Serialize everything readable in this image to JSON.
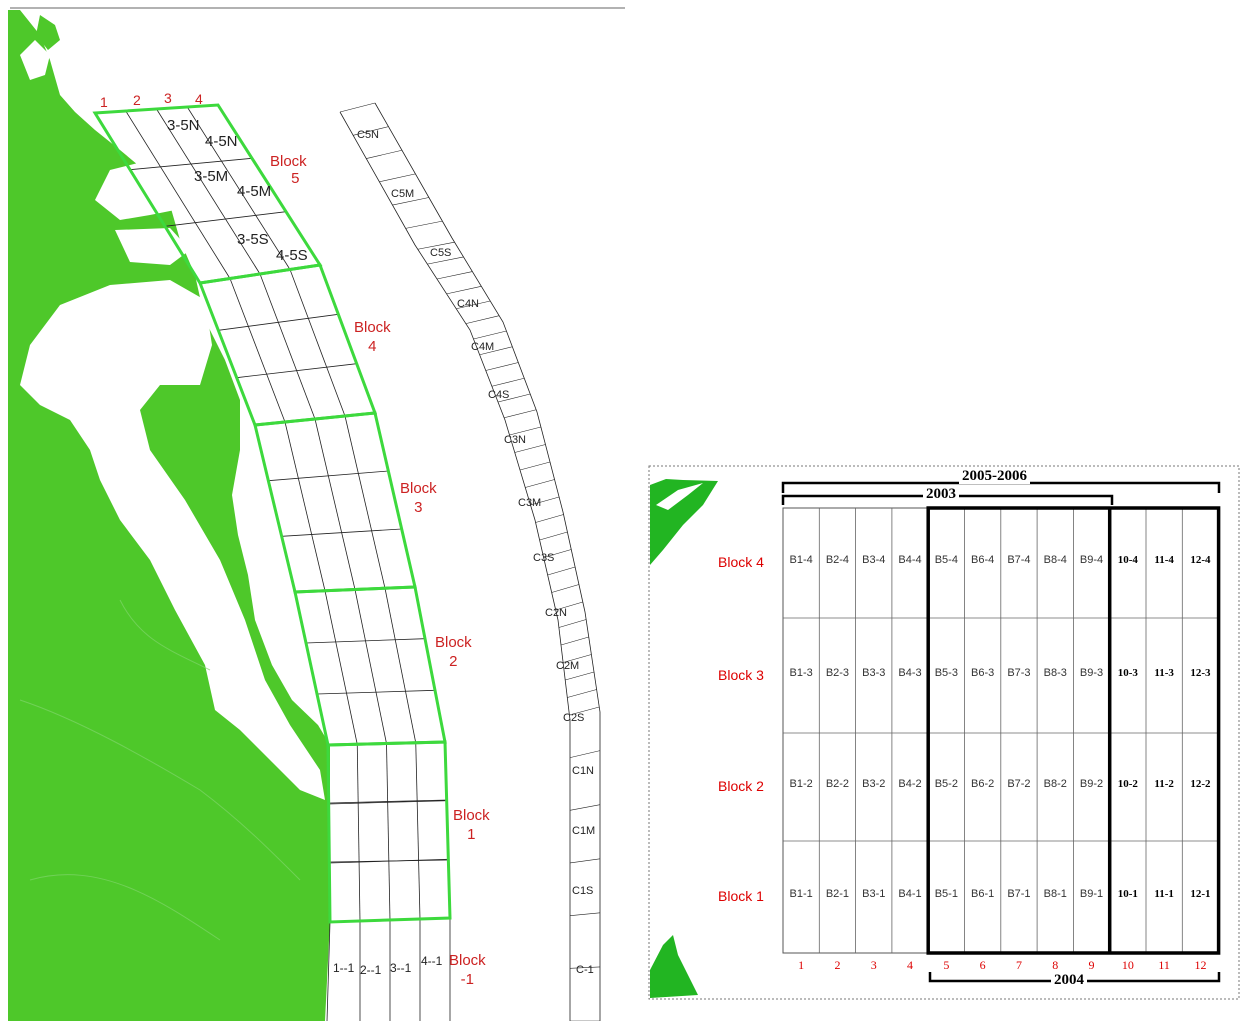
{
  "left_map": {
    "colors": {
      "land": "#4ec82a",
      "block_outline": "#3dd93d",
      "grid": "#222222",
      "label_red": "#cc2222"
    },
    "column_labels": [
      "1",
      "2",
      "3",
      "4"
    ],
    "blocks": [
      {
        "label": "Block",
        "num": "5"
      },
      {
        "label": "Block",
        "num": "4"
      },
      {
        "label": "Block",
        "num": "3"
      },
      {
        "label": "Block",
        "num": "2"
      },
      {
        "label": "Block",
        "num": "1"
      },
      {
        "label": "Block",
        "num": "-1"
      }
    ],
    "cell_labels": [
      "3-5N",
      "4-5N",
      "3-5M",
      "4-5M",
      "3-5S",
      "4-5S"
    ],
    "bottom_cells": [
      "1--1",
      "2--1",
      "3--1",
      "4--1"
    ],
    "control_cells": [
      "C5N",
      "C5M",
      "C5S",
      "C4N",
      "C4M",
      "C4S",
      "C3N",
      "C3M",
      "C3S",
      "C2N",
      "C2M",
      "C2S",
      "C1N",
      "C1M",
      "C1S",
      "C-1"
    ]
  },
  "right_diagram": {
    "colors": {
      "land": "#22b522",
      "red": "#dd0000",
      "grid": "#555555"
    },
    "header_2005": "2005-2006",
    "header_2003": "2003",
    "footer_2004": "2004",
    "rows": [
      {
        "label": "Block 4",
        "cells": [
          "B1-4",
          "B2-4",
          "B3-4",
          "B4-4",
          "B5-4",
          "B6-4",
          "B7-4",
          "B8-4",
          "B9-4",
          "10-4",
          "11-4",
          "12-4"
        ]
      },
      {
        "label": "Block 3",
        "cells": [
          "B1-3",
          "B2-3",
          "B3-3",
          "B4-3",
          "B5-3",
          "B6-3",
          "B7-3",
          "B8-3",
          "B9-3",
          "10-3",
          "11-3",
          "12-3"
        ]
      },
      {
        "label": "Block 2",
        "cells": [
          "B1-2",
          "B2-2",
          "B3-2",
          "B4-2",
          "B5-2",
          "B6-2",
          "B7-2",
          "B8-2",
          "B9-2",
          "10-2",
          "11-2",
          "12-2"
        ]
      },
      {
        "label": "Block 1",
        "cells": [
          "B1-1",
          "B2-1",
          "B3-1",
          "B4-1",
          "B5-1",
          "B6-1",
          "B7-1",
          "B8-1",
          "B9-1",
          "10-1",
          "11-1",
          "12-1"
        ]
      }
    ],
    "column_numbers": [
      "1",
      "2",
      "3",
      "4",
      "5",
      "6",
      "7",
      "8",
      "9",
      "10",
      "11",
      "12"
    ]
  }
}
